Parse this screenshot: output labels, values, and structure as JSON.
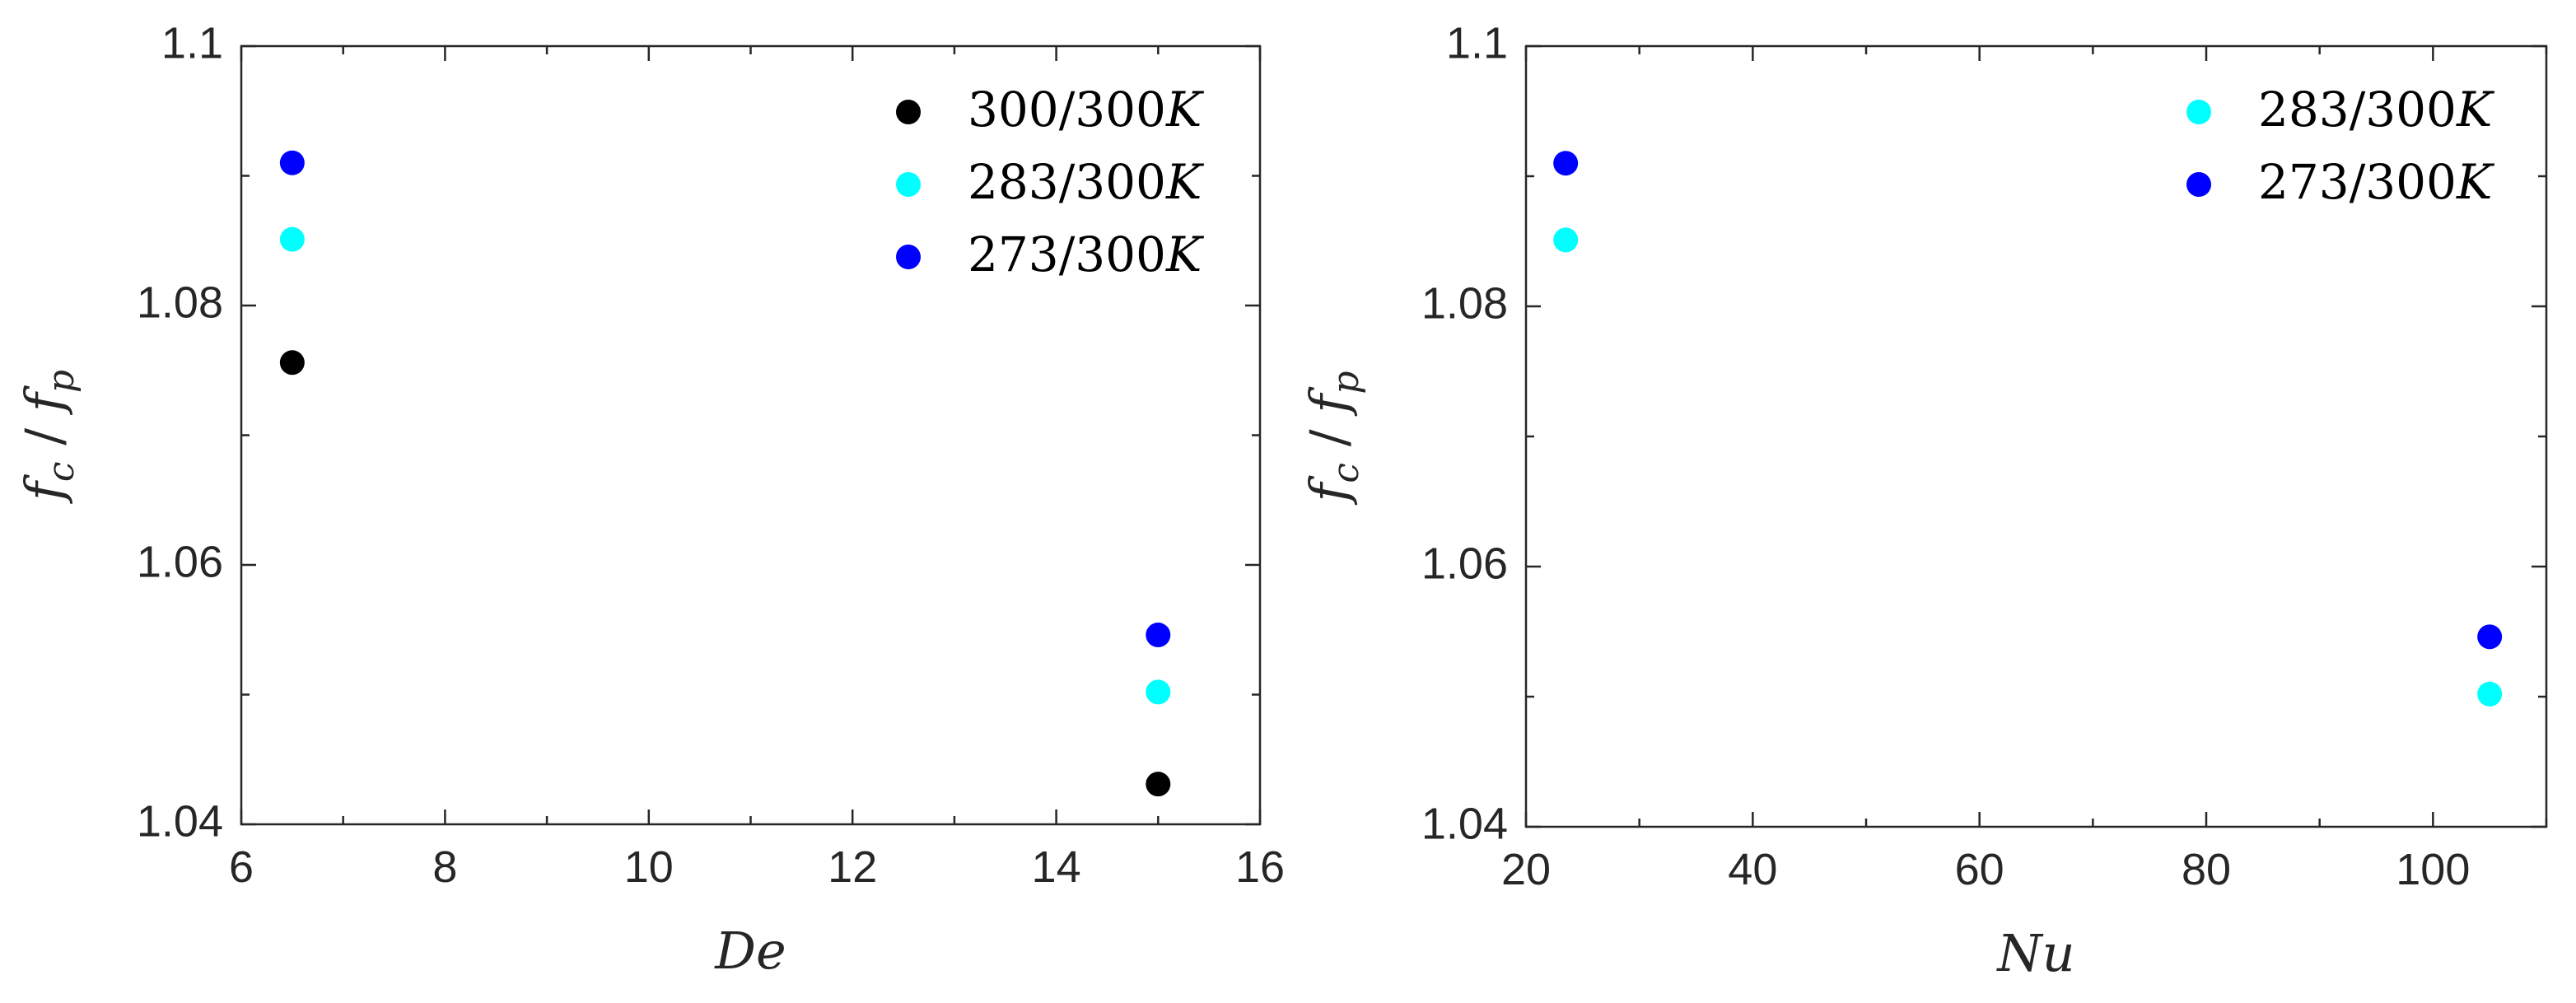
{
  "chart_data": [
    {
      "type": "scatter",
      "xlabel": "De",
      "ylabel": "f_c / f_p",
      "xlim": [
        6,
        16
      ],
      "ylim": [
        1.04,
        1.1
      ],
      "xticks": [
        "6",
        "8",
        "10",
        "12",
        "14",
        "16"
      ],
      "yticks": [
        "1.04",
        "1.06",
        "1.08",
        "1.1"
      ],
      "legend_position": "top-right",
      "grid": false,
      "series": [
        {
          "name": "300/300K",
          "color": "#000000",
          "x": [
            6.5,
            15.0
          ],
          "y": [
            1.0756,
            1.0431
          ]
        },
        {
          "name": "283/300K",
          "color": "#00FFFF",
          "x": [
            6.5,
            15.0
          ],
          "y": [
            1.0851,
            1.0502
          ]
        },
        {
          "name": "273/300K",
          "color": "#0000FF",
          "x": [
            6.5,
            15.0
          ],
          "y": [
            1.091,
            1.0546
          ]
        }
      ]
    },
    {
      "type": "scatter",
      "xlabel": "Nu",
      "ylabel": "f_c / f_p",
      "xlim": [
        20,
        110
      ],
      "ylim": [
        1.04,
        1.1
      ],
      "xticks": [
        "20",
        "40",
        "60",
        "80",
        "100"
      ],
      "yticks": [
        "1.04",
        "1.06",
        "1.08",
        "1.1"
      ],
      "legend_position": "top-right",
      "grid": false,
      "series": [
        {
          "name": "283/300K",
          "color": "#00FFFF",
          "x": [
            23.5,
            105.0
          ],
          "y": [
            1.0851,
            1.0502
          ]
        },
        {
          "name": "273/300K",
          "color": "#0000FF",
          "x": [
            23.5,
            105.0
          ],
          "y": [
            1.091,
            1.0546
          ]
        }
      ]
    }
  ]
}
